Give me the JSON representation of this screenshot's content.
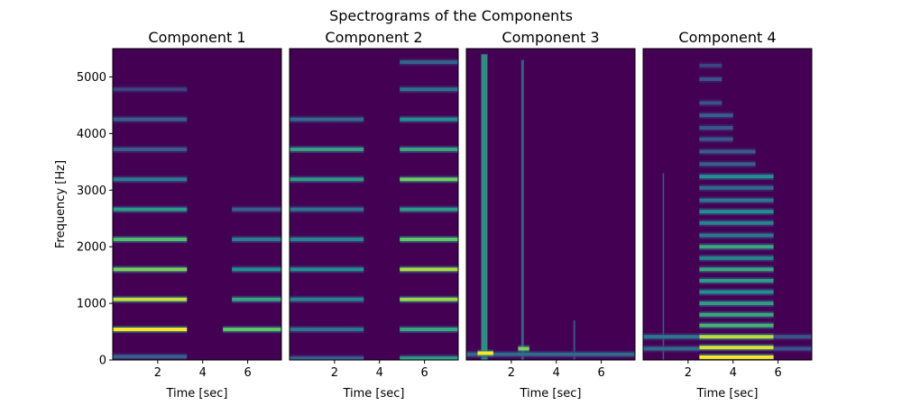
{
  "chart_data": {
    "type": "heatmap",
    "title": "Spectrograms of the Components",
    "ylabel": "Frequency [Hz]",
    "ylim": [
      0,
      5500
    ],
    "xlim": [
      0,
      7.5
    ],
    "yticks": [
      0,
      1000,
      2000,
      3000,
      4000,
      5000
    ],
    "xticks": [
      2,
      4,
      6
    ],
    "colormap": "viridis",
    "background_color": "#440154",
    "panels": [
      {
        "title": "Component 1",
        "xlabel": "Time [sec]",
        "bands": [
          {
            "freq": 540,
            "t0": 0,
            "t1": 3.3,
            "level": 1.0
          },
          {
            "freq": 1070,
            "t0": 0,
            "t1": 3.3,
            "level": 0.92
          },
          {
            "freq": 1600,
            "t0": 0,
            "t1": 3.3,
            "level": 0.8
          },
          {
            "freq": 2130,
            "t0": 0,
            "t1": 3.3,
            "level": 0.7
          },
          {
            "freq": 2660,
            "t0": 0,
            "t1": 3.3,
            "level": 0.55
          },
          {
            "freq": 3190,
            "t0": 0,
            "t1": 3.3,
            "level": 0.42
          },
          {
            "freq": 3720,
            "t0": 0,
            "t1": 3.3,
            "level": 0.3
          },
          {
            "freq": 4250,
            "t0": 0,
            "t1": 3.3,
            "level": 0.3
          },
          {
            "freq": 4780,
            "t0": 0,
            "t1": 3.3,
            "level": 0.2
          },
          {
            "freq": 60,
            "t0": 0,
            "t1": 3.3,
            "level": 0.3
          },
          {
            "freq": 540,
            "t0": 4.9,
            "t1": 7.5,
            "level": 0.75
          },
          {
            "freq": 1070,
            "t0": 5.3,
            "t1": 7.5,
            "level": 0.6
          },
          {
            "freq": 1600,
            "t0": 5.3,
            "t1": 7.5,
            "level": 0.5
          },
          {
            "freq": 2130,
            "t0": 5.3,
            "t1": 7.5,
            "level": 0.42
          },
          {
            "freq": 2660,
            "t0": 5.3,
            "t1": 7.5,
            "level": 0.3
          }
        ]
      },
      {
        "title": "Component 2",
        "xlabel": "Time [sec]",
        "bands": [
          {
            "freq": 30,
            "t0": 0,
            "t1": 3.3,
            "level": 0.3
          },
          {
            "freq": 540,
            "t0": 0,
            "t1": 3.3,
            "level": 0.4
          },
          {
            "freq": 1070,
            "t0": 0,
            "t1": 3.3,
            "level": 0.45
          },
          {
            "freq": 1600,
            "t0": 0,
            "t1": 3.3,
            "level": 0.5
          },
          {
            "freq": 2130,
            "t0": 0,
            "t1": 3.3,
            "level": 0.45
          },
          {
            "freq": 2660,
            "t0": 0,
            "t1": 3.3,
            "level": 0.38
          },
          {
            "freq": 3190,
            "t0": 0,
            "t1": 3.3,
            "level": 0.55
          },
          {
            "freq": 3720,
            "t0": 0,
            "t1": 3.3,
            "level": 0.58
          },
          {
            "freq": 4250,
            "t0": 0,
            "t1": 3.3,
            "level": 0.35
          },
          {
            "freq": 30,
            "t0": 4.9,
            "t1": 7.5,
            "level": 0.55
          },
          {
            "freq": 540,
            "t0": 4.9,
            "t1": 7.5,
            "level": 0.6
          },
          {
            "freq": 1070,
            "t0": 4.9,
            "t1": 7.5,
            "level": 0.85
          },
          {
            "freq": 1600,
            "t0": 4.9,
            "t1": 7.5,
            "level": 0.88
          },
          {
            "freq": 2130,
            "t0": 4.9,
            "t1": 7.5,
            "level": 0.75
          },
          {
            "freq": 2660,
            "t0": 4.9,
            "t1": 7.5,
            "level": 0.55
          },
          {
            "freq": 3190,
            "t0": 4.9,
            "t1": 7.5,
            "level": 0.78
          },
          {
            "freq": 3720,
            "t0": 4.9,
            "t1": 7.5,
            "level": 0.6
          },
          {
            "freq": 4250,
            "t0": 4.9,
            "t1": 7.5,
            "level": 0.5
          },
          {
            "freq": 4780,
            "t0": 4.9,
            "t1": 7.5,
            "level": 0.38
          },
          {
            "freq": 5260,
            "t0": 4.9,
            "t1": 7.5,
            "level": 0.32
          }
        ]
      },
      {
        "title": "Component 3",
        "xlabel": "Time [sec]",
        "vlines": [
          {
            "t": 0.8,
            "f0": 0,
            "f1": 5400,
            "level": 0.55,
            "width": 0.28
          },
          {
            "t": 2.5,
            "f0": 0,
            "f1": 5300,
            "level": 0.35,
            "width": 0.12
          },
          {
            "t": 4.8,
            "f0": 0,
            "f1": 700,
            "level": 0.3,
            "width": 0.08
          }
        ],
        "bands": [
          {
            "freq": 100,
            "t0": 0,
            "t1": 7.5,
            "level": 0.35
          },
          {
            "freq": 120,
            "t0": 0.5,
            "t1": 1.2,
            "level": 1.0
          },
          {
            "freq": 200,
            "t0": 2.3,
            "t1": 2.8,
            "level": 0.8
          }
        ]
      },
      {
        "title": "Component 4",
        "xlabel": "Time [sec]",
        "vlines": [
          {
            "t": 0.9,
            "f0": 0,
            "f1": 3300,
            "level": 0.35,
            "width": 0.06
          }
        ],
        "bands": [
          {
            "freq": 50,
            "t0": 2.5,
            "t1": 5.8,
            "level": 1.0
          },
          {
            "freq": 220,
            "t0": 2.5,
            "t1": 5.8,
            "level": 0.95
          },
          {
            "freq": 410,
            "t0": 2.5,
            "t1": 5.8,
            "level": 0.9
          },
          {
            "freq": 610,
            "t0": 2.5,
            "t1": 5.8,
            "level": 0.65
          },
          {
            "freq": 800,
            "t0": 2.5,
            "t1": 5.8,
            "level": 0.6
          },
          {
            "freq": 1000,
            "t0": 2.5,
            "t1": 5.8,
            "level": 0.55
          },
          {
            "freq": 1200,
            "t0": 2.5,
            "t1": 5.8,
            "level": 0.5
          },
          {
            "freq": 1400,
            "t0": 2.5,
            "t1": 5.8,
            "level": 0.55
          },
          {
            "freq": 1600,
            "t0": 2.5,
            "t1": 5.8,
            "level": 0.6
          },
          {
            "freq": 1800,
            "t0": 2.5,
            "t1": 5.8,
            "level": 0.45
          },
          {
            "freq": 2000,
            "t0": 2.5,
            "t1": 5.8,
            "level": 0.6
          },
          {
            "freq": 2200,
            "t0": 2.5,
            "t1": 5.8,
            "level": 0.4
          },
          {
            "freq": 2420,
            "t0": 2.5,
            "t1": 5.8,
            "level": 0.45
          },
          {
            "freq": 2620,
            "t0": 2.5,
            "t1": 5.8,
            "level": 0.5
          },
          {
            "freq": 2820,
            "t0": 2.5,
            "t1": 5.8,
            "level": 0.4
          },
          {
            "freq": 3040,
            "t0": 2.5,
            "t1": 5.8,
            "level": 0.35
          },
          {
            "freq": 3240,
            "t0": 2.5,
            "t1": 5.8,
            "level": 0.5
          },
          {
            "freq": 3460,
            "t0": 2.5,
            "t1": 5.0,
            "level": 0.3
          },
          {
            "freq": 3680,
            "t0": 2.5,
            "t1": 5.0,
            "level": 0.3
          },
          {
            "freq": 3900,
            "t0": 2.5,
            "t1": 4.0,
            "level": 0.28
          },
          {
            "freq": 4100,
            "t0": 2.5,
            "t1": 4.0,
            "level": 0.28
          },
          {
            "freq": 4320,
            "t0": 2.5,
            "t1": 4.0,
            "level": 0.3
          },
          {
            "freq": 4540,
            "t0": 2.5,
            "t1": 3.5,
            "level": 0.25
          },
          {
            "freq": 4960,
            "t0": 2.5,
            "t1": 3.5,
            "level": 0.25
          },
          {
            "freq": 5200,
            "t0": 2.5,
            "t1": 3.5,
            "level": 0.2
          },
          {
            "freq": 200,
            "t0": 0,
            "t1": 2.5,
            "level": 0.35
          },
          {
            "freq": 410,
            "t0": 0,
            "t1": 2.5,
            "level": 0.4
          },
          {
            "freq": 200,
            "t0": 5.8,
            "t1": 7.5,
            "level": 0.25
          },
          {
            "freq": 410,
            "t0": 5.8,
            "t1": 7.5,
            "level": 0.25
          }
        ]
      }
    ]
  }
}
